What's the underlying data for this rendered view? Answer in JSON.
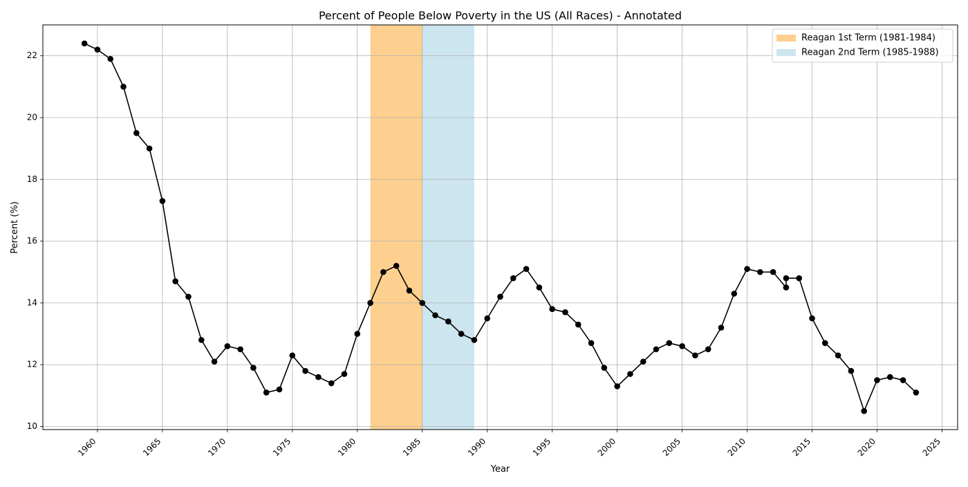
{
  "chart_data": {
    "type": "line",
    "title": "Percent of People Below Poverty in the US (All Races) - Annotated",
    "xlabel": "Year",
    "ylabel": "Percent (%)",
    "xlim": [
      1955.8,
      2026.2
    ],
    "ylim": [
      9.9,
      23.0
    ],
    "x_ticks": [
      1960,
      1965,
      1970,
      1975,
      1980,
      1985,
      1990,
      1995,
      2000,
      2005,
      2010,
      2015,
      2020,
      2025
    ],
    "x_tick_labels": [
      "1960",
      "1965",
      "1970",
      "1975",
      "1980",
      "1985",
      "1990",
      "1995",
      "2000",
      "2005",
      "2010",
      "2015",
      "2020",
      "2025"
    ],
    "y_ticks": [
      10,
      12,
      14,
      16,
      18,
      20,
      22
    ],
    "y_tick_labels": [
      "10",
      "12",
      "14",
      "16",
      "18",
      "20",
      "22"
    ],
    "grid": true,
    "legend_position": "top-right",
    "series": [
      {
        "color": "#000000",
        "marker": "circle",
        "x": [
          1959,
          1960,
          1961,
          1962,
          1963,
          1964,
          1965,
          1966,
          1967,
          1968,
          1969,
          1970,
          1971,
          1972,
          1973,
          1974,
          1975,
          1976,
          1977,
          1978,
          1979,
          1980,
          1981,
          1982,
          1983,
          1984,
          1985,
          1986,
          1987,
          1988,
          1989,
          1990,
          1991,
          1992,
          1993,
          1994,
          1995,
          1996,
          1997,
          1998,
          1999,
          2000,
          2001,
          2002,
          2003,
          2004,
          2005,
          2006,
          2007,
          2008,
          2009,
          2010,
          2011,
          2012,
          2013,
          2013,
          2014,
          2015,
          2016,
          2017,
          2018,
          2019,
          2020,
          2021,
          2022,
          2023
        ],
        "y": [
          22.4,
          22.2,
          21.9,
          21.0,
          19.5,
          19.0,
          17.3,
          14.7,
          14.2,
          12.8,
          12.1,
          12.6,
          12.5,
          11.9,
          11.1,
          11.2,
          12.3,
          11.8,
          11.6,
          11.4,
          11.7,
          13.0,
          14.0,
          15.0,
          15.2,
          14.4,
          14.0,
          13.6,
          13.4,
          13.0,
          12.8,
          13.5,
          14.2,
          14.8,
          15.1,
          14.5,
          13.8,
          13.7,
          13.3,
          12.7,
          11.9,
          11.3,
          11.7,
          12.1,
          12.5,
          12.7,
          12.6,
          12.3,
          12.5,
          13.2,
          14.3,
          15.1,
          15.0,
          15.0,
          14.5,
          14.8,
          14.8,
          13.5,
          12.7,
          12.3,
          11.8,
          10.5,
          11.5,
          11.6,
          11.5,
          11.1
        ]
      }
    ],
    "shaded_regions": [
      {
        "label": "Reagan 1st Term (1981-1984)",
        "x_start": 1981,
        "x_end": 1985,
        "color": "#fdd08f"
      },
      {
        "label": "Reagan 2nd Term (1985-1988)",
        "x_start": 1985,
        "x_end": 1989,
        "color": "#cce5ef"
      }
    ]
  }
}
